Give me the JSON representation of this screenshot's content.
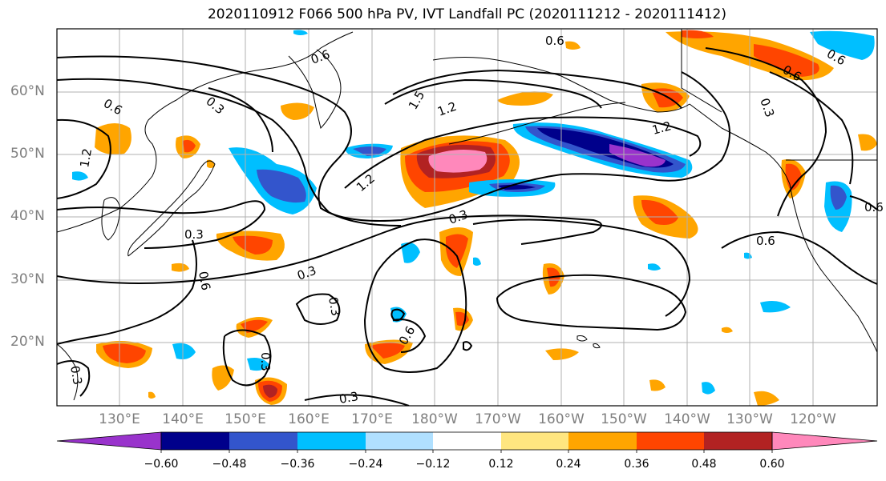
{
  "title": "2020110912 F066 500 hPa PV, IVT Landfall PC (2020111212 - 2020111412)",
  "lat_labels": [
    "60°N",
    "50°N",
    "40°N",
    "30°N",
    "20°N"
  ],
  "lon_labels": [
    "130°E",
    "140°E",
    "150°E",
    "160°E",
    "170°E",
    "180°W",
    "170°W",
    "160°W",
    "150°W",
    "140°W",
    "130°W",
    "120°W"
  ],
  "colorbar": {
    "tick_labels": [
      "−0.60",
      "−0.48",
      "−0.36",
      "−0.24",
      "−0.12",
      "0.12",
      "0.24",
      "0.36",
      "0.48",
      "0.60"
    ],
    "colors": [
      "#9933cc",
      "#00008b",
      "#3355cc",
      "#00bfff",
      "#b0e0ff",
      "#ffffff",
      "#ffe680",
      "#ffa500",
      "#ff4500",
      "#b22222",
      "#ff88bb"
    ]
  },
  "contour_labels": [
    "0.6",
    "0.6",
    "0.6",
    "0.3",
    "1.5",
    "1.2",
    "1.2",
    "1.2",
    "1.2",
    "0.6",
    "0.6",
    "0.3",
    "0.3",
    "0.3",
    "0.6",
    "0.3",
    "0.3",
    "0.6",
    "0.3",
    "0.6",
    "0.3",
    "0.6",
    "0.3",
    "0.6",
    "0.6"
  ]
}
